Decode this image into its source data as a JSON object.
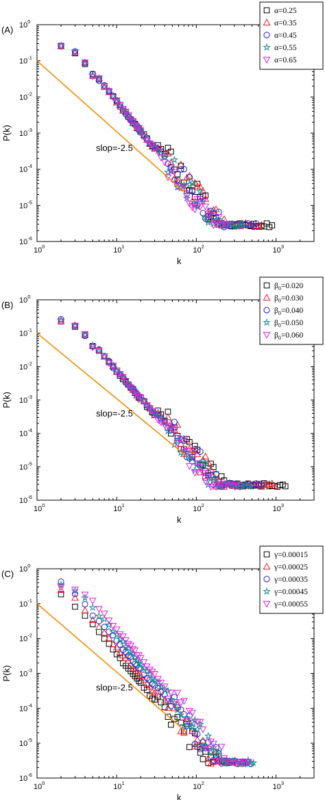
{
  "colors": {
    "series": [
      "#000000",
      "#e8202a",
      "#1f1fd0",
      "#1a8f8f",
      "#e020e0"
    ],
    "reference_line": "#f08c00"
  },
  "chart_data": [
    {
      "type": "scatter",
      "panel_label": "(A)",
      "xlabel": "k",
      "ylabel": "P(k)",
      "x_scale": "log",
      "y_scale": "log",
      "xlim": [
        1,
        3000
      ],
      "ylim": [
        1e-06,
        1
      ],
      "x_ticks": [
        1,
        10,
        100,
        1000
      ],
      "y_ticks": [
        1e-06,
        1e-05,
        0.0001,
        0.001,
        0.01,
        0.1,
        1
      ],
      "legend_position": "top-right",
      "annotation": {
        "text": "slop=-2.5",
        "k": 5.5,
        "p": 0.00032
      },
      "reference_line": {
        "slope": -2.5,
        "x": [
          1,
          72
        ],
        "y": [
          0.1,
          2.27e-05
        ]
      },
      "series": [
        {
          "legend": "α=0.25",
          "marker": "square",
          "kmax": 900,
          "tail_extra": 0.2
        },
        {
          "legend": "α=0.35",
          "marker": "triangle-up",
          "kmax": 700,
          "tail_extra": 0.18
        },
        {
          "legend": "α=0.45",
          "marker": "circle",
          "kmax": 600,
          "tail_extra": 0.12
        },
        {
          "legend": "α=0.55",
          "marker": "star",
          "kmax": 400,
          "tail_extra": 0.08
        },
        {
          "legend": "α=0.65",
          "marker": "triangle-down",
          "kmax": 250,
          "tail_extra": 0.0
        }
      ]
    },
    {
      "type": "scatter",
      "panel_label": "(B)",
      "xlabel": "k",
      "ylabel": "P(k)",
      "x_scale": "log",
      "y_scale": "log",
      "xlim": [
        1,
        3000
      ],
      "ylim": [
        1e-06,
        1
      ],
      "x_ticks": [
        1,
        10,
        100,
        1000
      ],
      "y_ticks": [
        1e-06,
        1e-05,
        0.0001,
        0.001,
        0.01,
        0.1,
        1
      ],
      "legend_position": "top-right",
      "annotation": {
        "text": "slop=-2.5",
        "k": 5.5,
        "p": 0.00032
      },
      "reference_line": {
        "slope": -2.5,
        "x": [
          1,
          72
        ],
        "y": [
          0.1,
          2.27e-05
        ]
      },
      "series": [
        {
          "legend_base": "β",
          "legend_sub": "0",
          "legend_value": "=0.020",
          "marker": "square",
          "kmax": 1400,
          "tail_extra": 0.2
        },
        {
          "legend_base": "β",
          "legend_sub": "0",
          "legend_value": "=0.030",
          "marker": "triangle-up",
          "kmax": 1000,
          "tail_extra": 0.16
        },
        {
          "legend_base": "β",
          "legend_sub": "0",
          "legend_value": "=0.040",
          "marker": "circle",
          "kmax": 700,
          "tail_extra": 0.12
        },
        {
          "legend_base": "β",
          "legend_sub": "0",
          "legend_value": "=0.050",
          "marker": "star",
          "kmax": 500,
          "tail_extra": 0.06
        },
        {
          "legend_base": "β",
          "legend_sub": "0",
          "legend_value": "=0.060",
          "marker": "triangle-down",
          "kmax": 350,
          "tail_extra": 0.0
        }
      ]
    },
    {
      "type": "scatter",
      "panel_label": "(C)",
      "xlabel": "k",
      "ylabel": "P(k)",
      "x_scale": "log",
      "y_scale": "log",
      "xlim": [
        1,
        3000
      ],
      "ylim": [
        1e-06,
        1
      ],
      "x_ticks": [
        1,
        10,
        100,
        1000
      ],
      "y_ticks": [
        1e-06,
        1e-05,
        0.0001,
        0.001,
        0.01,
        0.1,
        1
      ],
      "legend_position": "top-right",
      "annotation": {
        "text": "slop=-2.5",
        "k": 5.5,
        "p": 0.00032
      },
      "reference_line": {
        "slope": -2.5,
        "x": [
          1,
          72
        ],
        "y": [
          0.1,
          2.27e-05
        ]
      },
      "series": [
        {
          "legend": "γ=0.00015",
          "marker": "square",
          "kmax": 300,
          "tail_extra": 0.18,
          "shift": -0.12
        },
        {
          "legend": "γ=0.00025",
          "marker": "triangle-up",
          "kmax": 420,
          "tail_extra": 0.14,
          "shift": -0.05
        },
        {
          "legend": "γ=0.00035",
          "marker": "circle",
          "kmax": 500,
          "tail_extra": 0.1,
          "shift": 0.02
        },
        {
          "legend": "γ=0.00045",
          "marker": "star",
          "kmax": 550,
          "tail_extra": 0.06,
          "shift": 0.08
        },
        {
          "legend": "γ=0.00055",
          "marker": "triangle-down",
          "kmax": 450,
          "tail_extra": 0.0,
          "shift": 0.14
        }
      ]
    }
  ]
}
